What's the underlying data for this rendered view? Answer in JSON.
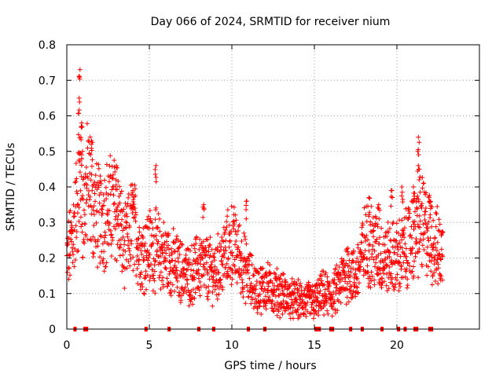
{
  "chart_data": {
    "type": "scatter",
    "title": "Day 066 of 2024, SRMTID for receiver nium",
    "xlabel": "GPS time / hours",
    "ylabel": "SRMTID / TECUs",
    "xlim": [
      0,
      25
    ],
    "ylim": [
      0,
      0.8
    ],
    "xticks": [
      0,
      5,
      10,
      15,
      20
    ],
    "yticks": [
      0,
      0.1,
      0.2,
      0.3,
      0.4,
      0.5,
      0.6,
      0.7,
      0.8
    ],
    "xtick_labels": [
      "0",
      "5",
      "10",
      "15",
      "20"
    ],
    "ytick_labels": [
      "0",
      "0.1",
      "0.2",
      "0.3",
      "0.4",
      "0.5",
      "0.6",
      "0.7",
      "0.8"
    ],
    "grid": true,
    "marker": "+",
    "color": "#ff0000",
    "series": [
      {
        "name": "SRMTID",
        "trend": [
          [
            0.0,
            0.19
          ],
          [
            0.5,
            0.3
          ],
          [
            0.8,
            0.45
          ],
          [
            1.0,
            0.32
          ],
          [
            1.3,
            0.42
          ],
          [
            1.6,
            0.34
          ],
          [
            2.0,
            0.31
          ],
          [
            2.5,
            0.33
          ],
          [
            3.0,
            0.35
          ],
          [
            3.5,
            0.22
          ],
          [
            4.0,
            0.3
          ],
          [
            4.5,
            0.21
          ],
          [
            5.0,
            0.23
          ],
          [
            5.5,
            0.22
          ],
          [
            6.0,
            0.2
          ],
          [
            6.5,
            0.18
          ],
          [
            7.0,
            0.16
          ],
          [
            7.5,
            0.15
          ],
          [
            8.0,
            0.18
          ],
          [
            8.5,
            0.17
          ],
          [
            9.0,
            0.16
          ],
          [
            9.5,
            0.2
          ],
          [
            10.0,
            0.24
          ],
          [
            10.5,
            0.2
          ],
          [
            11.0,
            0.15
          ],
          [
            11.5,
            0.11
          ],
          [
            12.0,
            0.12
          ],
          [
            12.5,
            0.11
          ],
          [
            13.0,
            0.1
          ],
          [
            13.5,
            0.085
          ],
          [
            14.0,
            0.08
          ],
          [
            14.5,
            0.08
          ],
          [
            15.0,
            0.075
          ],
          [
            15.5,
            0.1
          ],
          [
            16.0,
            0.09
          ],
          [
            16.5,
            0.12
          ],
          [
            17.0,
            0.17
          ],
          [
            17.5,
            0.14
          ],
          [
            18.0,
            0.23
          ],
          [
            18.5,
            0.24
          ],
          [
            19.0,
            0.2
          ],
          [
            19.5,
            0.2
          ],
          [
            20.0,
            0.2
          ],
          [
            20.5,
            0.22
          ],
          [
            21.0,
            0.26
          ],
          [
            21.5,
            0.3
          ],
          [
            22.0,
            0.26
          ],
          [
            22.5,
            0.22
          ],
          [
            22.8,
            0.21
          ]
        ],
        "spikes": [
          [
            0.8,
            0.73
          ],
          [
            0.75,
            0.65
          ],
          [
            0.9,
            0.58
          ],
          [
            0.95,
            0.5
          ],
          [
            1.5,
            0.53
          ],
          [
            3.0,
            0.46
          ],
          [
            5.4,
            0.46
          ],
          [
            4.0,
            0.39
          ],
          [
            8.3,
            0.35
          ],
          [
            10.9,
            0.36
          ],
          [
            19.7,
            0.39
          ],
          [
            21.3,
            0.54
          ],
          [
            21.3,
            0.46
          ],
          [
            21.0,
            0.4
          ],
          [
            22.0,
            0.36
          ],
          [
            18.3,
            0.37
          ],
          [
            18.9,
            0.35
          ],
          [
            20.3,
            0.4
          ]
        ],
        "zero_markers": [
          0.5,
          1.1,
          1.2,
          4.8,
          6.2,
          8.0,
          8.9,
          11.0,
          12.0,
          15.1,
          15.3,
          16.0,
          16.1,
          17.2,
          17.9,
          19.1,
          20.1,
          20.5,
          21.1,
          21.2,
          22.0,
          22.1
        ]
      }
    ]
  }
}
